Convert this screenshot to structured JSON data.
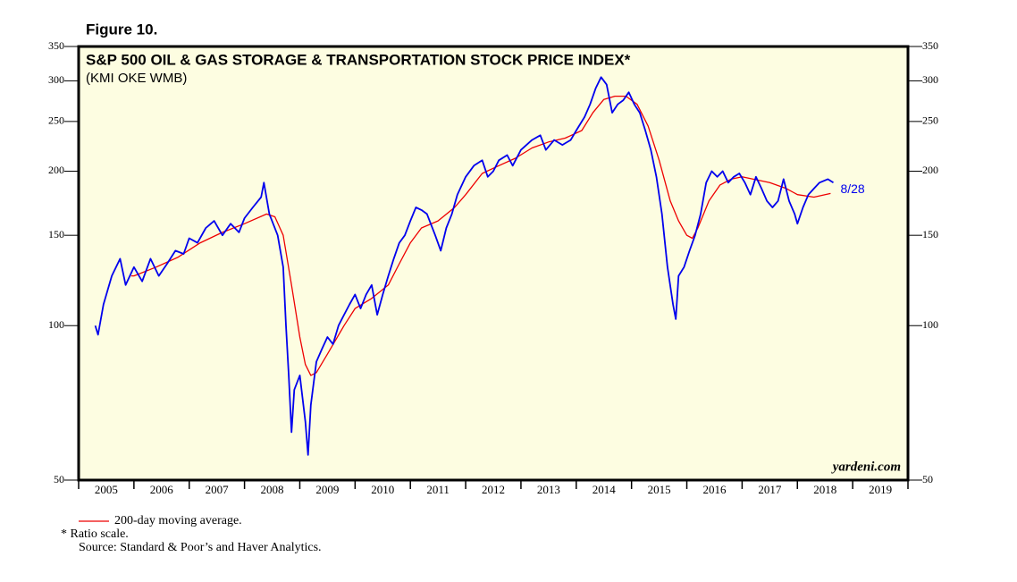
{
  "chart_data": {
    "type": "line",
    "figure_label": "Figure 10.",
    "title": "S&P 500 OIL & GAS STORAGE & TRANSPORTATION STOCK PRICE INDEX*",
    "subtitle": "(KMI OKE WMB)",
    "source_mark": "yardeni.com",
    "annotation": "8/28",
    "notes": [
      "* Ratio scale.",
      "Source: Standard & Poor’s and Haver Analytics."
    ],
    "yscale": "log",
    "ylim": [
      50,
      350
    ],
    "yticks": [
      50,
      100,
      150,
      200,
      250,
      300,
      350
    ],
    "xlim": [
      2005,
      2020
    ],
    "xticks": [
      2005,
      2006,
      2007,
      2008,
      2009,
      2010,
      2011,
      2012,
      2013,
      2014,
      2015,
      2016,
      2017,
      2018,
      2019
    ],
    "background": "#fdfde1",
    "series": [
      {
        "color": "#0000ee",
        "x": [
          2005.3,
          2005.35,
          2005.45,
          2005.6,
          2005.75,
          2005.85,
          2006.0,
          2006.15,
          2006.3,
          2006.45,
          2006.6,
          2006.75,
          2006.9,
          2007.0,
          2007.15,
          2007.3,
          2007.45,
          2007.6,
          2007.75,
          2007.9,
          2008.0,
          2008.15,
          2008.3,
          2008.35,
          2008.45,
          2008.6,
          2008.7,
          2008.75,
          2008.8,
          2008.85,
          2008.9,
          2009.0,
          2009.1,
          2009.15,
          2009.2,
          2009.3,
          2009.4,
          2009.5,
          2009.6,
          2009.7,
          2009.8,
          2009.9,
          2010.0,
          2010.1,
          2010.2,
          2010.3,
          2010.4,
          2010.5,
          2010.6,
          2010.7,
          2010.8,
          2010.9,
          2011.0,
          2011.1,
          2011.2,
          2011.3,
          2011.45,
          2011.55,
          2011.65,
          2011.75,
          2011.85,
          2012.0,
          2012.15,
          2012.3,
          2012.4,
          2012.5,
          2012.6,
          2012.75,
          2012.85,
          2013.0,
          2013.2,
          2013.35,
          2013.45,
          2013.6,
          2013.75,
          2013.9,
          2014.0,
          2014.15,
          2014.25,
          2014.35,
          2014.45,
          2014.55,
          2014.65,
          2014.75,
          2014.85,
          2014.95,
          2015.05,
          2015.15,
          2015.25,
          2015.35,
          2015.45,
          2015.55,
          2015.65,
          2015.75,
          2015.8,
          2015.85,
          2015.95,
          2016.05,
          2016.15,
          2016.25,
          2016.35,
          2016.45,
          2016.55,
          2016.65,
          2016.75,
          2016.85,
          2016.95,
          2017.05,
          2017.15,
          2017.25,
          2017.35,
          2017.45,
          2017.55,
          2017.65,
          2017.75,
          2017.85,
          2017.95,
          2018.0,
          2018.1,
          2018.2,
          2018.3,
          2018.4,
          2018.55,
          2018.65
        ],
        "values": [
          100,
          96,
          110,
          125,
          135,
          120,
          130,
          122,
          135,
          125,
          132,
          140,
          138,
          148,
          145,
          155,
          160,
          150,
          158,
          152,
          162,
          170,
          178,
          190,
          165,
          150,
          130,
          100,
          80,
          62,
          75,
          80,
          65,
          56,
          70,
          85,
          90,
          95,
          92,
          100,
          105,
          110,
          115,
          108,
          115,
          120,
          105,
          115,
          125,
          135,
          145,
          150,
          160,
          170,
          168,
          165,
          150,
          140,
          155,
          165,
          180,
          195,
          205,
          210,
          195,
          200,
          210,
          215,
          205,
          220,
          230,
          235,
          220,
          230,
          225,
          230,
          240,
          255,
          270,
          290,
          305,
          295,
          260,
          270,
          275,
          285,
          270,
          260,
          240,
          220,
          195,
          165,
          130,
          110,
          103,
          125,
          130,
          140,
          150,
          165,
          190,
          200,
          195,
          200,
          190,
          195,
          198,
          190,
          180,
          195,
          185,
          175,
          170,
          175,
          193,
          175,
          165,
          158,
          170,
          180,
          185,
          190,
          193,
          190
        ]
      },
      {
        "name": "200-day moving average.",
        "color": "#ee0000",
        "x": [
          2005.95,
          2006.0,
          2006.4,
          2006.8,
          2007.2,
          2007.6,
          2008.0,
          2008.4,
          2008.55,
          2008.7,
          2008.85,
          2009.0,
          2009.1,
          2009.2,
          2009.3,
          2009.5,
          2009.8,
          2010.0,
          2010.3,
          2010.6,
          2010.8,
          2011.0,
          2011.2,
          2011.5,
          2011.8,
          2012.0,
          2012.3,
          2012.6,
          2012.9,
          2013.2,
          2013.5,
          2013.8,
          2014.1,
          2014.3,
          2014.5,
          2014.7,
          2014.9,
          2015.1,
          2015.3,
          2015.5,
          2015.7,
          2015.85,
          2016.0,
          2016.1,
          2016.2,
          2016.4,
          2016.6,
          2016.8,
          2017.0,
          2017.2,
          2017.5,
          2017.8,
          2018.0,
          2018.3,
          2018.6
        ],
        "values": [
          125,
          125,
          130,
          136,
          145,
          152,
          158,
          165,
          163,
          150,
          120,
          95,
          84,
          80,
          81,
          88,
          100,
          108,
          113,
          120,
          132,
          145,
          155,
          160,
          170,
          180,
          198,
          205,
          212,
          222,
          228,
          232,
          240,
          260,
          276,
          280,
          280,
          270,
          245,
          210,
          175,
          160,
          150,
          148,
          155,
          175,
          188,
          193,
          195,
          193,
          190,
          185,
          180,
          178,
          181
        ]
      }
    ]
  }
}
